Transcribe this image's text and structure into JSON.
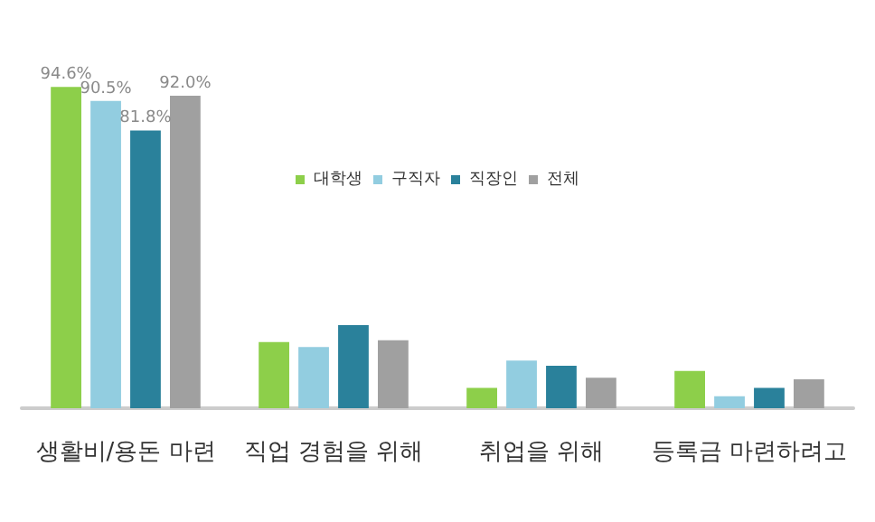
{
  "chart_data": {
    "type": "bar",
    "categories": [
      "생활비/용돈 마련",
      "직업 경험을 위해",
      "취업을 위해",
      "등록금 마련하려고"
    ],
    "series": [
      {
        "name": "대학생",
        "color": "#8dcf4a",
        "values": [
          94.6,
          19.5,
          6,
          11
        ],
        "value_labels": [
          "94.6%",
          null,
          null,
          null
        ]
      },
      {
        "name": "구직자",
        "color": "#92cde0",
        "values": [
          90.5,
          18,
          14,
          3.5
        ],
        "value_labels": [
          "90.5%",
          null,
          null,
          null
        ]
      },
      {
        "name": "직장인",
        "color": "#2a819b",
        "values": [
          81.8,
          24.5,
          12.5,
          6
        ],
        "value_labels": [
          "81.8%",
          null,
          null,
          null
        ]
      },
      {
        "name": "전체",
        "color": "#a0a0a0",
        "values": [
          92.0,
          20,
          9,
          8.5
        ],
        "value_labels": [
          "92.0%",
          null,
          null,
          null
        ]
      }
    ],
    "legend": "top"
  }
}
